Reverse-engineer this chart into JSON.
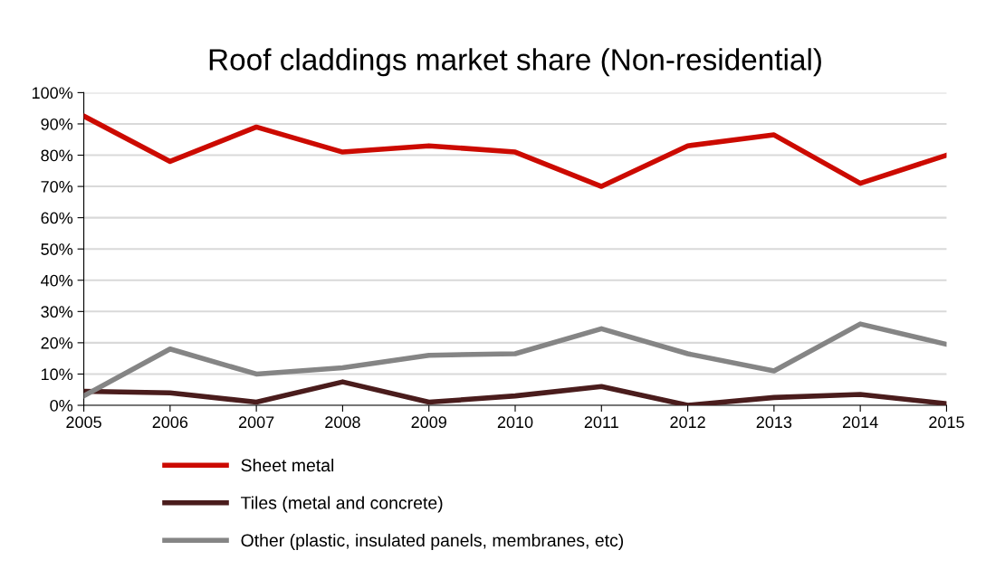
{
  "chart_data": {
    "type": "line",
    "title": "Roof claddings market share (Non-residential)",
    "x": [
      2005,
      2006,
      2007,
      2008,
      2009,
      2010,
      2011,
      2012,
      2013,
      2014,
      2015
    ],
    "series": [
      {
        "name": "Sheet metal",
        "color": "#cc0a00",
        "values": [
          92.5,
          78,
          89,
          81,
          83,
          81,
          70,
          83,
          86.5,
          71,
          80
        ]
      },
      {
        "name": "Tiles (metal and concrete)",
        "color": "#4a1c1c",
        "values": [
          4.5,
          4,
          1,
          7.5,
          1,
          3,
          6,
          0,
          2.5,
          3.5,
          0.5
        ]
      },
      {
        "name": "Other (plastic, insulated panels, membranes, etc)",
        "color": "#858585",
        "values": [
          3,
          18,
          10,
          12,
          16,
          16.5,
          24.5,
          16.5,
          11,
          26,
          19.5
        ]
      }
    ],
    "xlim": [
      2005,
      2015
    ],
    "xticks": [
      2005,
      2006,
      2007,
      2008,
      2009,
      2010,
      2011,
      2012,
      2013,
      2014,
      2015
    ],
    "ylim": [
      0,
      100
    ],
    "yticks": [
      {
        "value": 0,
        "label": "0%"
      },
      {
        "value": 10,
        "label": "10%"
      },
      {
        "value": 20,
        "label": "20%"
      },
      {
        "value": 30,
        "label": "30%"
      },
      {
        "value": 40,
        "label": "40%"
      },
      {
        "value": 50,
        "label": "50%"
      },
      {
        "value": 60,
        "label": "60%"
      },
      {
        "value": 70,
        "label": "70%"
      },
      {
        "value": 80,
        "label": "80%"
      },
      {
        "value": 90,
        "label": "90%"
      },
      {
        "value": 100,
        "label": "100%"
      }
    ],
    "grid": "y",
    "legend": "bottom",
    "line_style": "solid",
    "marker": "none"
  }
}
